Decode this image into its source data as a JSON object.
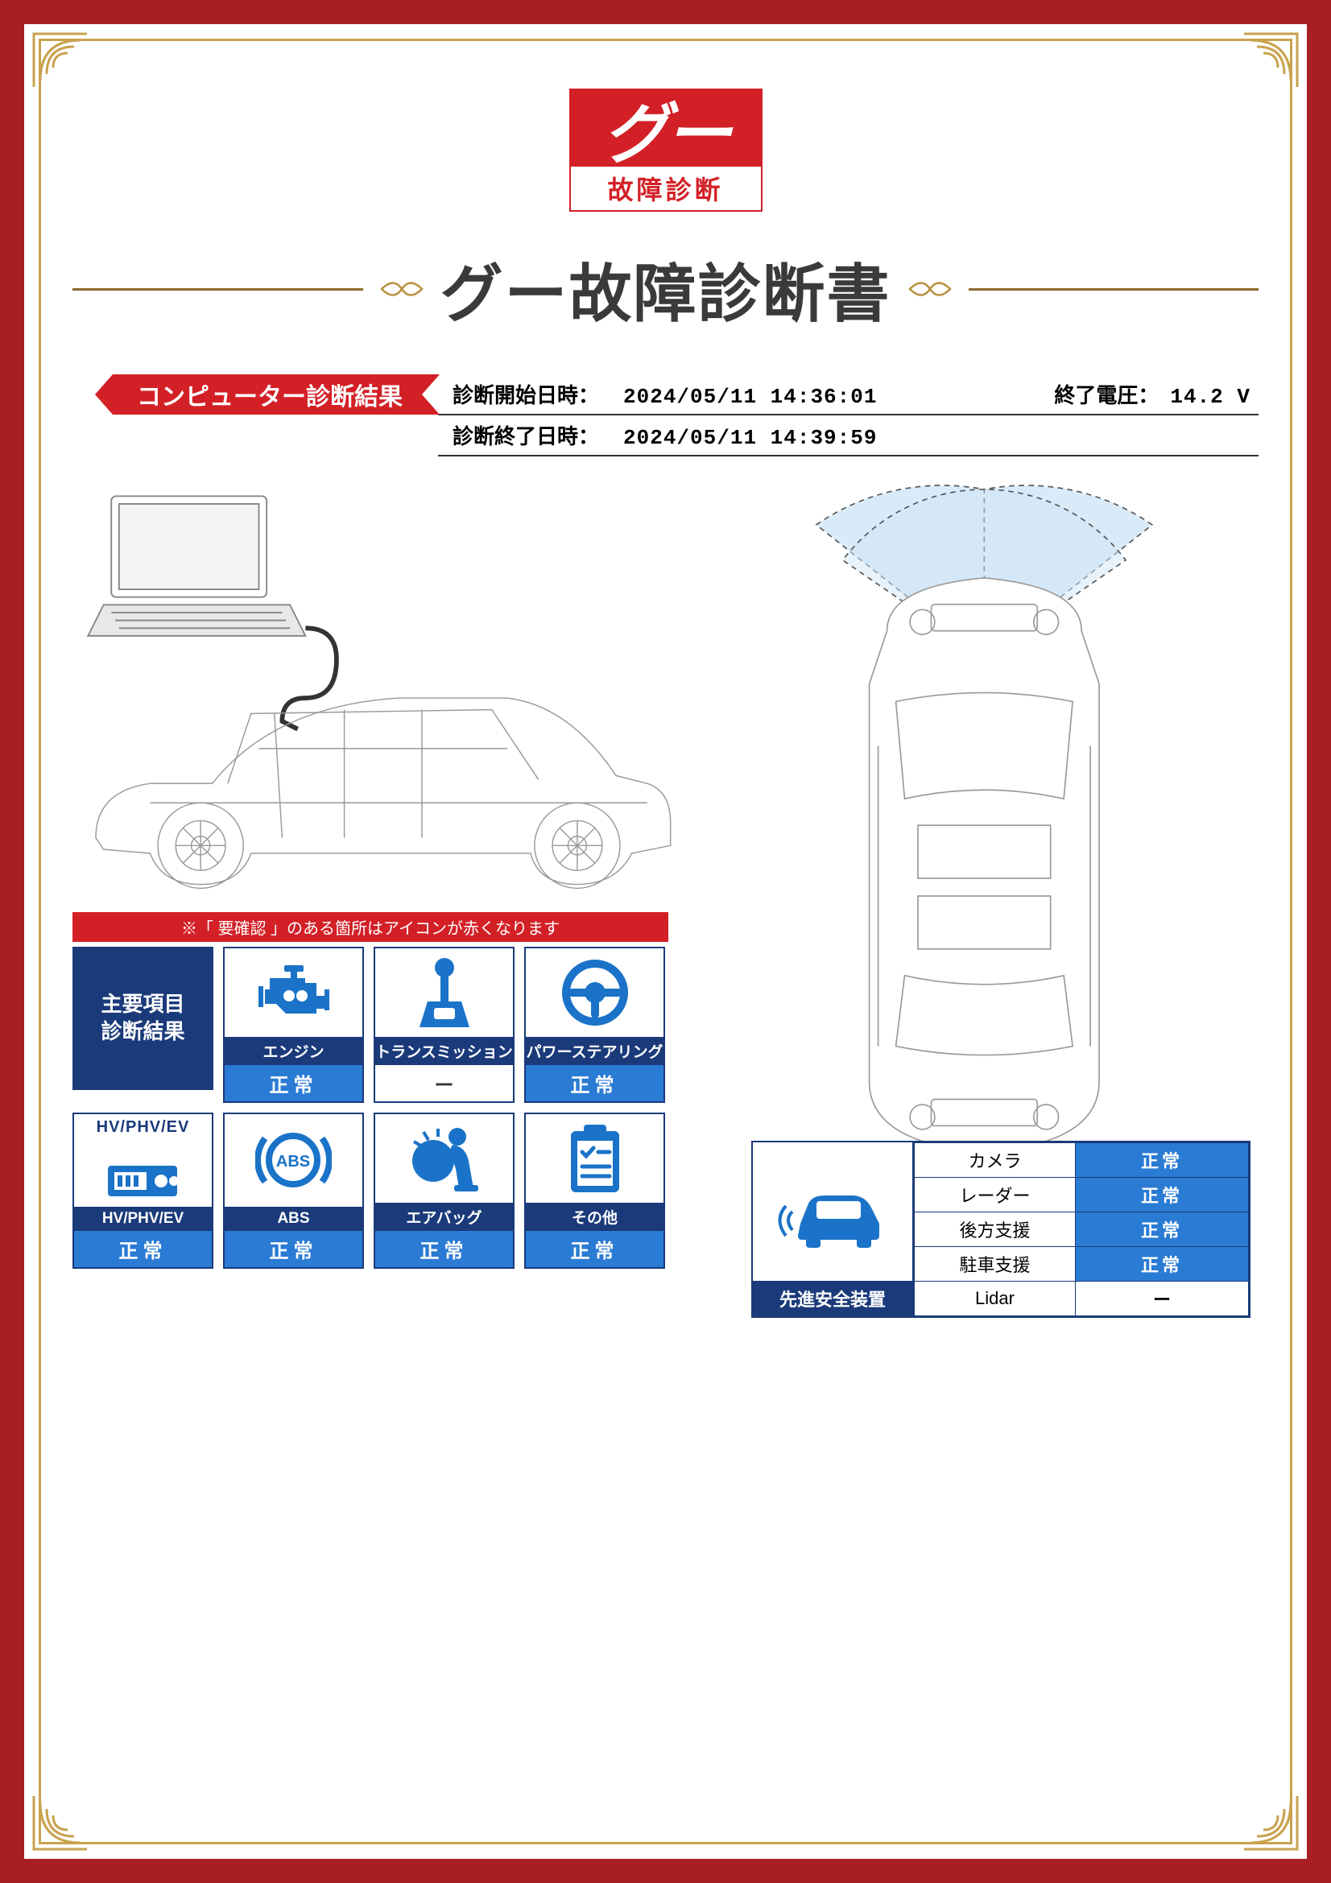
{
  "frame": {
    "outer_color": "#a81e22",
    "gold_color": "#c8a24e"
  },
  "logo": {
    "brand": "グー",
    "sub": "故障診断",
    "red": "#d32027"
  },
  "title": "グー故障診断書",
  "title_color": "#3a3a3a",
  "flourish_color": "#b8923f",
  "section_ribbon": "コンピューター診断結果",
  "meta": {
    "start_label": "診断開始日時：",
    "start_value": "2024/05/11 14:36:01",
    "end_label": "診断終了日時：",
    "end_value": "2024/05/11 14:39:59",
    "voltage_label": "終了電圧：",
    "voltage_value": "14.2 V"
  },
  "diag": {
    "note": "※「 要確認 」のある箇所はアイコンが赤くなります",
    "header_cell": "主要項目\n診断結果",
    "navy": "#1a3a7a",
    "blue": "#2a7bd4",
    "icon_color": "#1a73c8",
    "items": [
      {
        "key": "engine",
        "label": "エンジン",
        "status": "正常",
        "ok": true
      },
      {
        "key": "transmission",
        "label": "トランスミッション",
        "status": "ー",
        "ok": false
      },
      {
        "key": "power-steering",
        "label": "パワーステアリング",
        "status": "正常",
        "ok": true
      },
      {
        "key": "hv",
        "label": "HV/PHV/EV",
        "status": "正常",
        "ok": true,
        "text_top": "HV/PHV/EV"
      },
      {
        "key": "abs",
        "label": "ABS",
        "status": "正常",
        "ok": true
      },
      {
        "key": "airbag",
        "label": "エアバッグ",
        "status": "正常",
        "ok": true
      },
      {
        "key": "other",
        "label": "その他",
        "status": "正常",
        "ok": true
      }
    ]
  },
  "safety": {
    "header": "先進安全装置",
    "rows": [
      {
        "name": "カメラ",
        "status": "正常",
        "ok": true
      },
      {
        "name": "レーダー",
        "status": "正常",
        "ok": true
      },
      {
        "name": "後方支援",
        "status": "正常",
        "ok": true
      },
      {
        "name": "駐車支援",
        "status": "正常",
        "ok": true
      },
      {
        "name": "Lidar",
        "status": "ー",
        "ok": false
      }
    ]
  }
}
